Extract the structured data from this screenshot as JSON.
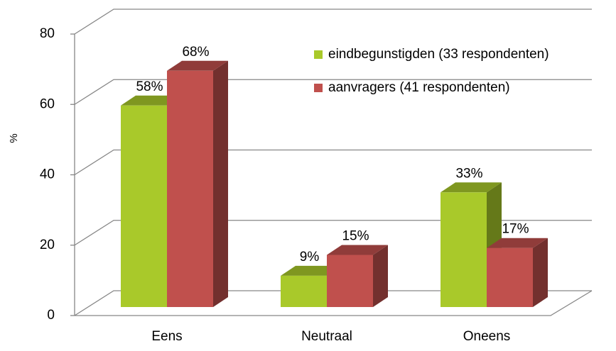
{
  "chart_data": {
    "type": "bar3d",
    "y_label": "%",
    "categories": [
      "Eens",
      "Neutraal",
      "Oneens"
    ],
    "series": [
      {
        "name": "eindbegunstigden (33 respondenten)",
        "color": "#a9c92a",
        "values": [
          58,
          9,
          33
        ],
        "value_labels": [
          "58%",
          "9%",
          "33%"
        ]
      },
      {
        "name": "aanvragers (41 respondenten)",
        "color": "#c0504d",
        "values": [
          68,
          15,
          17
        ],
        "value_labels": [
          "68%",
          "15%",
          "17%"
        ]
      }
    ],
    "ylim": [
      0,
      80
    ],
    "yticks": [
      0,
      20,
      40,
      60,
      80
    ],
    "grid": true,
    "legend": "top-right"
  }
}
